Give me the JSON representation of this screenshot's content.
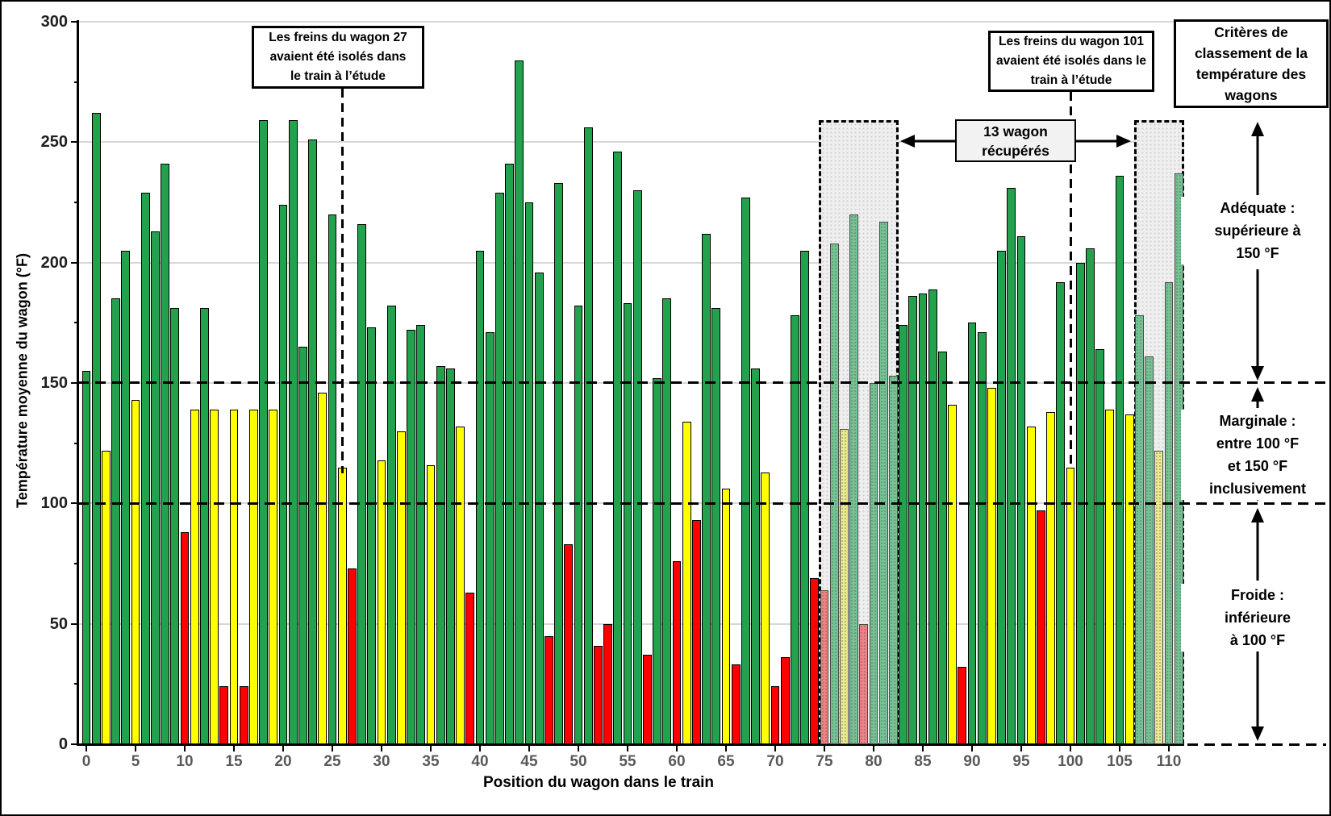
{
  "figure": {
    "y_axis": {
      "title": "Température moyenne du wagon (°F)",
      "min": 0,
      "max": 300,
      "major_step": 50,
      "minor_step": 25
    },
    "x_axis": {
      "title": "Position du wagon dans le train",
      "min": 0,
      "max": 110,
      "step": 5
    },
    "annotations": {
      "wagon27": {
        "lines": [
          "Les freins du wagon 27",
          "avaient été isolés dans",
          "le train à l’étude"
        ],
        "x_position": 26
      },
      "wagon101": {
        "lines": [
          "Les freins du wagon 101",
          "avaient été isolés dans le",
          "train à l’étude"
        ],
        "x_position": 100
      },
      "recovered": {
        "lines": [
          "13 wagon",
          "récupérés"
        ]
      }
    },
    "criteria": {
      "title_lines": [
        "Critères de",
        "classement de la",
        "température des",
        "wagons"
      ],
      "adequate_lines": [
        "Adéquate :",
        "supérieure à",
        "150 °F"
      ],
      "marginal_lines": [
        "Marginale :",
        "entre 100 °F",
        "et 150 °F",
        "inclusivement"
      ],
      "cold_lines": [
        "Froide :",
        "inférieure",
        "à 100 °F"
      ]
    },
    "colors": {
      "green": "#23A24D",
      "yellow": "#FFFF00",
      "red": "#FF0000",
      "green_muted": "#74C493",
      "yellow_muted": "#EAEA8E",
      "red_muted": "#F08281",
      "recovered_fill": "#EFEFEF",
      "grid": "#D8D8D8"
    }
  },
  "chart_data": {
    "type": "bar",
    "title": "",
    "xlabel": "Position du wagon dans le train",
    "ylabel": "Température moyenne du wagon (°F)",
    "ylim": [
      0,
      300
    ],
    "xticks": [
      0,
      5,
      10,
      15,
      20,
      25,
      30,
      35,
      40,
      45,
      50,
      55,
      60,
      65,
      70,
      75,
      80,
      85,
      90,
      95,
      100,
      105,
      110
    ],
    "dashed_thresholds": [
      100,
      150
    ],
    "recovered_groups": [
      {
        "from": 75,
        "to": 82
      },
      {
        "from": 107,
        "to": 111
      }
    ],
    "bars": [
      {
        "p": 0,
        "v": 155,
        "c": "g"
      },
      {
        "p": 1,
        "v": 262,
        "c": "g"
      },
      {
        "p": 2,
        "v": 122,
        "c": "y"
      },
      {
        "p": 3,
        "v": 185,
        "c": "g"
      },
      {
        "p": 4,
        "v": 205,
        "c": "g"
      },
      {
        "p": 5,
        "v": 143,
        "c": "y"
      },
      {
        "p": 6,
        "v": 229,
        "c": "g"
      },
      {
        "p": 7,
        "v": 213,
        "c": "g"
      },
      {
        "p": 8,
        "v": 241,
        "c": "g"
      },
      {
        "p": 9,
        "v": 181,
        "c": "g"
      },
      {
        "p": 10,
        "v": 88,
        "c": "r"
      },
      {
        "p": 11,
        "v": 139,
        "c": "y"
      },
      {
        "p": 12,
        "v": 181,
        "c": "g"
      },
      {
        "p": 13,
        "v": 139,
        "c": "y"
      },
      {
        "p": 14,
        "v": 24,
        "c": "r"
      },
      {
        "p": 15,
        "v": 139,
        "c": "y"
      },
      {
        "p": 16,
        "v": 24,
        "c": "r"
      },
      {
        "p": 17,
        "v": 139,
        "c": "y"
      },
      {
        "p": 18,
        "v": 259,
        "c": "g"
      },
      {
        "p": 19,
        "v": 139,
        "c": "y"
      },
      {
        "p": 20,
        "v": 224,
        "c": "g"
      },
      {
        "p": 21,
        "v": 259,
        "c": "g"
      },
      {
        "p": 22,
        "v": 165,
        "c": "g"
      },
      {
        "p": 23,
        "v": 251,
        "c": "g"
      },
      {
        "p": 24,
        "v": 146,
        "c": "y"
      },
      {
        "p": 25,
        "v": 220,
        "c": "g"
      },
      {
        "p": 26,
        "v": 115,
        "c": "y"
      },
      {
        "p": 27,
        "v": 73,
        "c": "r"
      },
      {
        "p": 28,
        "v": 216,
        "c": "g"
      },
      {
        "p": 29,
        "v": 173,
        "c": "g"
      },
      {
        "p": 30,
        "v": 118,
        "c": "y"
      },
      {
        "p": 31,
        "v": 182,
        "c": "g"
      },
      {
        "p": 32,
        "v": 130,
        "c": "y"
      },
      {
        "p": 33,
        "v": 172,
        "c": "g"
      },
      {
        "p": 34,
        "v": 174,
        "c": "g"
      },
      {
        "p": 35,
        "v": 116,
        "c": "y"
      },
      {
        "p": 36,
        "v": 157,
        "c": "g"
      },
      {
        "p": 37,
        "v": 156,
        "c": "g"
      },
      {
        "p": 38,
        "v": 132,
        "c": "y"
      },
      {
        "p": 39,
        "v": 63,
        "c": "r"
      },
      {
        "p": 40,
        "v": 205,
        "c": "g"
      },
      {
        "p": 41,
        "v": 171,
        "c": "g"
      },
      {
        "p": 42,
        "v": 229,
        "c": "g"
      },
      {
        "p": 43,
        "v": 241,
        "c": "g"
      },
      {
        "p": 44,
        "v": 284,
        "c": "g"
      },
      {
        "p": 45,
        "v": 225,
        "c": "g"
      },
      {
        "p": 46,
        "v": 196,
        "c": "g"
      },
      {
        "p": 47,
        "v": 45,
        "c": "r"
      },
      {
        "p": 48,
        "v": 233,
        "c": "g"
      },
      {
        "p": 49,
        "v": 83,
        "c": "r"
      },
      {
        "p": 50,
        "v": 182,
        "c": "g"
      },
      {
        "p": 51,
        "v": 256,
        "c": "g"
      },
      {
        "p": 52,
        "v": 41,
        "c": "r"
      },
      {
        "p": 53,
        "v": 50,
        "c": "r"
      },
      {
        "p": 54,
        "v": 246,
        "c": "g"
      },
      {
        "p": 55,
        "v": 183,
        "c": "g"
      },
      {
        "p": 56,
        "v": 230,
        "c": "g"
      },
      {
        "p": 57,
        "v": 37,
        "c": "r"
      },
      {
        "p": 58,
        "v": 152,
        "c": "g"
      },
      {
        "p": 59,
        "v": 185,
        "c": "g"
      },
      {
        "p": 60,
        "v": 76,
        "c": "r"
      },
      {
        "p": 61,
        "v": 134,
        "c": "y"
      },
      {
        "p": 62,
        "v": 93,
        "c": "r"
      },
      {
        "p": 63,
        "v": 212,
        "c": "g"
      },
      {
        "p": 64,
        "v": 181,
        "c": "g"
      },
      {
        "p": 65,
        "v": 106,
        "c": "y"
      },
      {
        "p": 66,
        "v": 33,
        "c": "r"
      },
      {
        "p": 67,
        "v": 227,
        "c": "g"
      },
      {
        "p": 68,
        "v": 156,
        "c": "g"
      },
      {
        "p": 69,
        "v": 113,
        "c": "y"
      },
      {
        "p": 70,
        "v": 24,
        "c": "r"
      },
      {
        "p": 71,
        "v": 36,
        "c": "r"
      },
      {
        "p": 72,
        "v": 178,
        "c": "g"
      },
      {
        "p": 73,
        "v": 205,
        "c": "g"
      },
      {
        "p": 74,
        "v": 69,
        "c": "r"
      },
      {
        "p": 75,
        "v": 64,
        "c": "r",
        "rec": true
      },
      {
        "p": 76,
        "v": 208,
        "c": "g",
        "rec": true
      },
      {
        "p": 77,
        "v": 131,
        "c": "y",
        "rec": true
      },
      {
        "p": 78,
        "v": 220,
        "c": "g",
        "rec": true
      },
      {
        "p": 79,
        "v": 50,
        "c": "r",
        "rec": true
      },
      {
        "p": 80,
        "v": 150,
        "c": "g",
        "rec": true
      },
      {
        "p": 81,
        "v": 217,
        "c": "g",
        "rec": true
      },
      {
        "p": 82,
        "v": 153,
        "c": "g",
        "rec": true
      },
      {
        "p": 83,
        "v": 174,
        "c": "g"
      },
      {
        "p": 84,
        "v": 186,
        "c": "g"
      },
      {
        "p": 85,
        "v": 187,
        "c": "g"
      },
      {
        "p": 86,
        "v": 189,
        "c": "g"
      },
      {
        "p": 87,
        "v": 163,
        "c": "g"
      },
      {
        "p": 88,
        "v": 141,
        "c": "y"
      },
      {
        "p": 89,
        "v": 32,
        "c": "r"
      },
      {
        "p": 90,
        "v": 175,
        "c": "g"
      },
      {
        "p": 91,
        "v": 171,
        "c": "g"
      },
      {
        "p": 92,
        "v": 148,
        "c": "y"
      },
      {
        "p": 93,
        "v": 205,
        "c": "g"
      },
      {
        "p": 94,
        "v": 231,
        "c": "g"
      },
      {
        "p": 95,
        "v": 211,
        "c": "g"
      },
      {
        "p": 96,
        "v": 132,
        "c": "y"
      },
      {
        "p": 97,
        "v": 97,
        "c": "r"
      },
      {
        "p": 98,
        "v": 138,
        "c": "y"
      },
      {
        "p": 99,
        "v": 192,
        "c": "g"
      },
      {
        "p": 100,
        "v": 115,
        "c": "y"
      },
      {
        "p": 101,
        "v": 200,
        "c": "g"
      },
      {
        "p": 102,
        "v": 206,
        "c": "g"
      },
      {
        "p": 103,
        "v": 164,
        "c": "g"
      },
      {
        "p": 104,
        "v": 139,
        "c": "y"
      },
      {
        "p": 105,
        "v": 236,
        "c": "g"
      },
      {
        "p": 106,
        "v": 137,
        "c": "y"
      },
      {
        "p": 107,
        "v": 178,
        "c": "g",
        "rec": true
      },
      {
        "p": 108,
        "v": 161,
        "c": "g",
        "rec": true
      },
      {
        "p": 109,
        "v": 122,
        "c": "y",
        "rec": true
      },
      {
        "p": 110,
        "v": 192,
        "c": "g",
        "rec": true
      },
      {
        "p": 111,
        "v": 237,
        "c": "g",
        "rec": true
      }
    ]
  }
}
